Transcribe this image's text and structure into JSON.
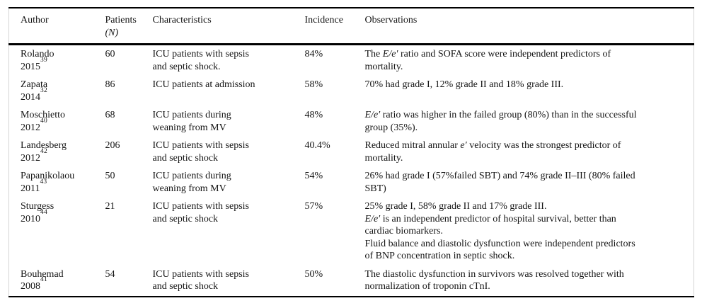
{
  "colors": {
    "rule": "#000000",
    "text": "#141414",
    "edge": "#d4d4d4",
    "bg": "#ffffff"
  },
  "table": {
    "columns": [
      {
        "id": "author",
        "label": "Author"
      },
      {
        "id": "patients",
        "label": "Patients",
        "sub": "(N)"
      },
      {
        "id": "characteristics",
        "label": "Characteristics"
      },
      {
        "id": "incidence",
        "label": "Incidence"
      },
      {
        "id": "observations",
        "label": "Observations"
      }
    ],
    "rows": [
      {
        "author": "Rolando",
        "year": "2015",
        "ref": "39",
        "patients": "60",
        "characteristics": [
          "ICU patients with sepsis",
          "and septic shock."
        ],
        "incidence": "84%",
        "observations": [
          [
            {
              "t": "The "
            },
            {
              "t": "E/e′",
              "i": true
            },
            {
              "t": " ratio and SOFA score were independent predictors of"
            }
          ],
          [
            {
              "t": "mortality."
            }
          ]
        ]
      },
      {
        "author": "Zapata",
        "year": "2014",
        "ref": "32",
        "patients": "86",
        "characteristics": [
          "ICU patients at admission"
        ],
        "incidence": "58%",
        "observations": [
          [
            {
              "t": "70% had grade I, 12% grade II and 18% grade III."
            }
          ]
        ]
      },
      {
        "author": "Moschietto",
        "year": "2012",
        "ref": "40",
        "patients": "68",
        "characteristics": [
          "ICU patients during",
          "weaning from MV"
        ],
        "incidence": "48%",
        "observations": [
          [
            {
              "t": "E/e′",
              "i": true
            },
            {
              "t": " ratio was higher in the failed group (80%) than in the successful"
            }
          ],
          [
            {
              "t": "group (35%)."
            }
          ]
        ]
      },
      {
        "author": "Landesberg",
        "year": "2012",
        "ref": "42",
        "patients": "206",
        "characteristics": [
          "ICU patients with sepsis",
          "and septic shock"
        ],
        "incidence": "40.4%",
        "observations": [
          [
            {
              "t": "Reduced mitral annular "
            },
            {
              "t": "e′",
              "i": true
            },
            {
              "t": " velocity was the strongest predictor of"
            }
          ],
          [
            {
              "t": "mortality."
            }
          ]
        ]
      },
      {
        "author": "Papanikolaou",
        "year": "2011",
        "ref": "43",
        "patients": "50",
        "characteristics": [
          "ICU patients during",
          "weaning from MV"
        ],
        "incidence": "54%",
        "observations": [
          [
            {
              "t": "26% had grade I (57%failed SBT) and 74% grade II–III (80% failed"
            }
          ],
          [
            {
              "t": "SBT)"
            }
          ]
        ]
      },
      {
        "author": "Sturgess",
        "year": "2010",
        "ref": "44",
        "patients": "21",
        "characteristics": [
          "ICU patients with sepsis",
          "and septic shock"
        ],
        "incidence": "57%",
        "observations": [
          [
            {
              "t": "25% grade I, 58% grade II and 17% grade III."
            }
          ],
          [
            {
              "t": "E/e′",
              "i": true
            },
            {
              "t": " is an independent predictor of hospital survival, better than"
            }
          ],
          [
            {
              "t": "cardiac biomarkers."
            }
          ],
          [
            {
              "t": "Fluid balance and diastolic dysfunction were independent predictors"
            }
          ],
          [
            {
              "t": "of BNP concentration in septic shock."
            }
          ]
        ]
      },
      {
        "author": "Bouhemad",
        "year": "2008",
        "ref": "41",
        "patients": "54",
        "characteristics": [
          "ICU patients with sepsis",
          "and septic shock"
        ],
        "incidence": "50%",
        "observations": [
          [
            {
              "t": "The diastolic dysfunction in survivors was resolved together with"
            }
          ],
          [
            {
              "t": "normalization of troponin cTnI."
            }
          ]
        ]
      }
    ]
  }
}
